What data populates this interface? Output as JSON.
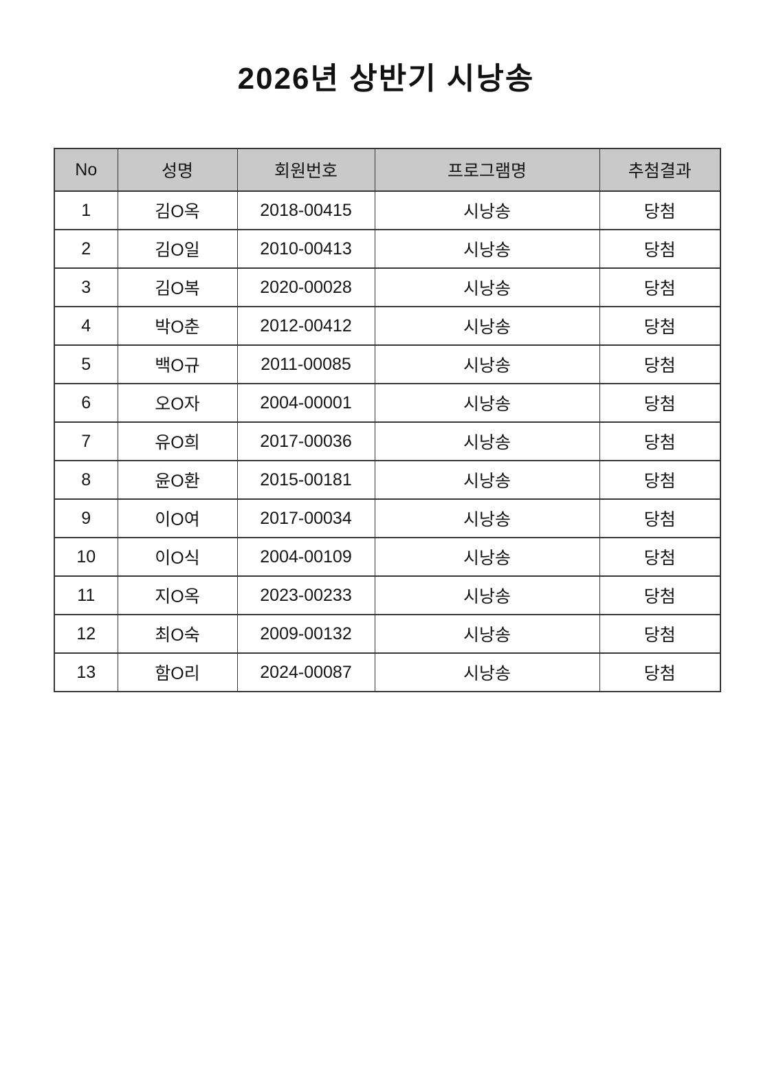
{
  "title": "2026년 상반기 시낭송",
  "table": {
    "column_keys": [
      "no",
      "name",
      "member-id",
      "program",
      "result"
    ],
    "headers": [
      "No",
      "성명",
      "회원번호",
      "프로그램명",
      "추첨결과"
    ],
    "rows": [
      [
        "1",
        "김O옥",
        "2018-00415",
        "시낭송",
        "당첨"
      ],
      [
        "2",
        "김O일",
        "2010-00413",
        "시낭송",
        "당첨"
      ],
      [
        "3",
        "김O복",
        "2020-00028",
        "시낭송",
        "당첨"
      ],
      [
        "4",
        "박O춘",
        "2012-00412",
        "시낭송",
        "당첨"
      ],
      [
        "5",
        "백O규",
        "2011-00085",
        "시낭송",
        "당첨"
      ],
      [
        "6",
        "오O자",
        "2004-00001",
        "시낭송",
        "당첨"
      ],
      [
        "7",
        "유O희",
        "2017-00036",
        "시낭송",
        "당첨"
      ],
      [
        "8",
        "윤O환",
        "2015-00181",
        "시낭송",
        "당첨"
      ],
      [
        "9",
        "이O여",
        "2017-00034",
        "시낭송",
        "당첨"
      ],
      [
        "10",
        "이O식",
        "2004-00109",
        "시낭송",
        "당첨"
      ],
      [
        "11",
        "지O옥",
        "2023-00233",
        "시낭송",
        "당첨"
      ],
      [
        "12",
        "최O숙",
        "2009-00132",
        "시낭송",
        "당첨"
      ],
      [
        "13",
        "함O리",
        "2024-00087",
        "시낭송",
        "당첨"
      ]
    ]
  },
  "colors": {
    "header_bg": "#c9c9c9",
    "border": "#363636",
    "text": "#141414"
  }
}
